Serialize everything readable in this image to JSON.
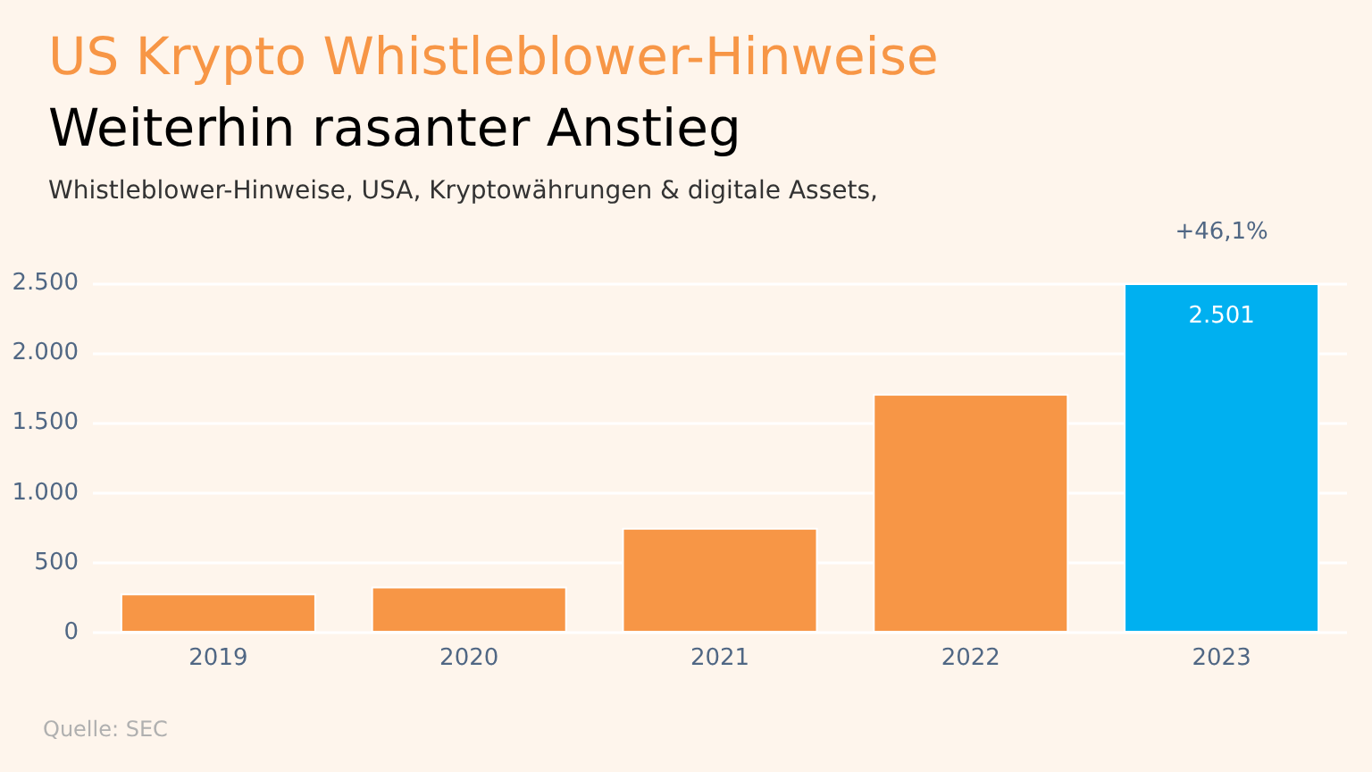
{
  "chart_data": {
    "type": "bar",
    "title": "US Krypto Whistleblower-Hinweise",
    "subtitle": "Weiterhin rasanter Anstieg",
    "ylabel": "Whistleblower-Hinweise, USA, Kryptowährungen & digitale Assets,",
    "categories": [
      "2019",
      "2020",
      "2021",
      "2022",
      "2023"
    ],
    "values": [
      280,
      330,
      750,
      1710,
      2501
    ],
    "colors": [
      "#f79646",
      "#f79646",
      "#f79646",
      "#f79646",
      "#00b0f0"
    ],
    "value_labels": [
      null,
      null,
      null,
      null,
      "2.501"
    ],
    "ylim": [
      0,
      2520
    ],
    "yticks": [
      {
        "value": 0,
        "label": "0"
      },
      {
        "value": 500,
        "label": "500"
      },
      {
        "value": 1000,
        "label": "1.000"
      },
      {
        "value": 1500,
        "label": "1.500"
      },
      {
        "value": 2000,
        "label": "2.000"
      },
      {
        "value": 2500,
        "label": "2.500"
      }
    ],
    "grid": "y",
    "annotations": [
      {
        "text": "+46,1%",
        "x": "2023",
        "y": 2501
      },
      "Quelle: SEC"
    ]
  }
}
